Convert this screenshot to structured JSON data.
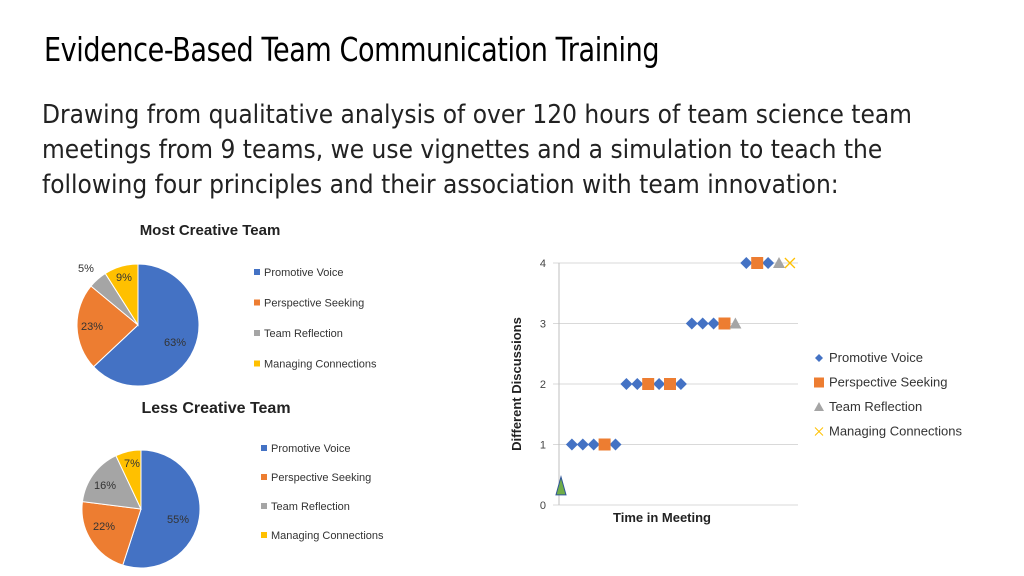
{
  "title": "Evidence-Based Team Communication Training",
  "body_lines": [
    "Drawing from qualitative analysis of over 120 hours of team science team",
    "meetings from 9 teams, we use vignettes and a simulation to teach the",
    "following four principles and their association with team innovation:"
  ],
  "colors": {
    "Promotive Voice": "#4472C4",
    "Perspective Seeking": "#ED7D31",
    "Team Reflection": "#A5A5A5",
    "Managing Connections": "#FFC000",
    "start_marker": "#70AD47"
  },
  "chart_data": [
    {
      "type": "pie",
      "title": "Most Creative Team",
      "categories": [
        "Promotive Voice",
        "Perspective Seeking",
        "Team Reflection",
        "Managing Connections"
      ],
      "values": [
        63,
        23,
        5,
        9
      ],
      "labels": [
        "63%",
        "23%",
        "5%",
        "9%"
      ],
      "legend": "right"
    },
    {
      "type": "pie",
      "title": "Less Creative Team",
      "categories": [
        "Promotive Voice",
        "Perspective Seeking",
        "Team Reflection",
        "Managing Connections"
      ],
      "values": [
        55,
        22,
        16,
        7
      ],
      "labels": [
        "55%",
        "22%",
        "16%",
        "7%"
      ],
      "legend": "right"
    },
    {
      "type": "scatter",
      "xlabel": "Time in Meeting",
      "ylabel": "Different Discussions",
      "ylim": [
        0,
        4
      ],
      "yticks": [
        "0",
        "1",
        "2",
        "3",
        "4"
      ],
      "grid": true,
      "legend": "right",
      "series": [
        {
          "name": "Promotive Voice",
          "marker": "diamond",
          "points": [
            [
              1,
              1
            ],
            [
              2,
              1
            ],
            [
              3,
              1
            ],
            [
              5,
              1
            ],
            [
              6,
              2
            ],
            [
              7,
              2
            ],
            [
              9,
              2
            ],
            [
              11,
              2
            ],
            [
              12,
              3
            ],
            [
              13,
              3
            ],
            [
              14,
              3
            ],
            [
              17,
              4
            ],
            [
              19,
              4
            ]
          ]
        },
        {
          "name": "Perspective Seeking",
          "marker": "square",
          "points": [
            [
              4,
              1
            ],
            [
              8,
              2
            ],
            [
              10,
              2
            ],
            [
              15,
              3
            ],
            [
              18,
              4
            ]
          ]
        },
        {
          "name": "Team Reflection",
          "marker": "triangle",
          "points": [
            [
              16,
              3
            ],
            [
              20,
              4
            ]
          ]
        },
        {
          "name": "Managing Connections",
          "marker": "x",
          "points": [
            [
              21,
              4
            ]
          ]
        }
      ],
      "start_marker": {
        "marker": "triangle",
        "points": [
          [
            0,
            0.3
          ]
        ]
      }
    }
  ]
}
